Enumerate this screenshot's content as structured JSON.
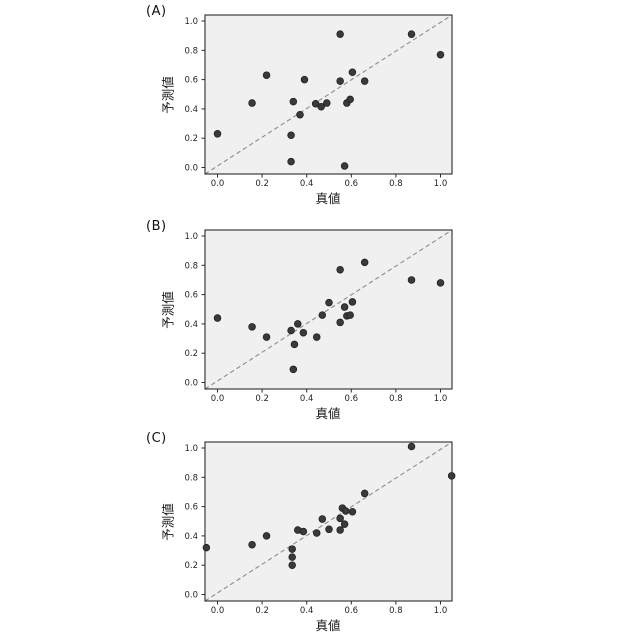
{
  "figure": {
    "background": "#ffffff",
    "description_labels": [
      "(A)",
      "(B)",
      "(C)"
    ]
  },
  "chart_data": [
    {
      "type": "scatter",
      "panel_label": "(A)",
      "xlabel": "真値",
      "ylabel": "予測値",
      "xlim": [
        -0.055,
        1.055
      ],
      "ylim": [
        -0.045,
        1.045
      ],
      "x_tick_values": [
        0.0,
        0.2,
        0.4,
        0.6,
        0.8,
        1.0
      ],
      "y_tick_values": [
        0.0,
        0.2,
        0.4,
        0.6,
        0.8,
        1.0
      ],
      "x_tick_labels": [
        "0.0",
        "0.2",
        "0.4",
        "0.6",
        "0.8",
        "1.0"
      ],
      "y_tick_labels": [
        "0.0",
        "0.2",
        "0.4",
        "0.6",
        "0.8",
        "1.0"
      ],
      "grid": false,
      "plot_bg": "#f0f0f0",
      "spine_color": "#2b2b2b",
      "identity_line": {
        "x": [
          0,
          1
        ],
        "y": [
          0,
          1
        ],
        "style": "dashed",
        "color": "#8c8c8c"
      },
      "marker": {
        "shape": "circle",
        "fill": "#3a3a3a",
        "edge": "#1c1c1c",
        "radius": 3.4
      },
      "points": [
        [
          0.0,
          0.23
        ],
        [
          0.155,
          0.44
        ],
        [
          0.22,
          0.63
        ],
        [
          0.33,
          0.22
        ],
        [
          0.33,
          0.04
        ],
        [
          0.34,
          0.45
        ],
        [
          0.37,
          0.36
        ],
        [
          0.39,
          0.6
        ],
        [
          0.44,
          0.435
        ],
        [
          0.465,
          0.415
        ],
        [
          0.49,
          0.44
        ],
        [
          0.55,
          0.91
        ],
        [
          0.55,
          0.59
        ],
        [
          0.57,
          0.01
        ],
        [
          0.58,
          0.44
        ],
        [
          0.595,
          0.465
        ],
        [
          0.605,
          0.65
        ],
        [
          0.66,
          0.59
        ],
        [
          0.87,
          0.91
        ],
        [
          1.0,
          0.77
        ]
      ]
    },
    {
      "type": "scatter",
      "panel_label": "(B)",
      "xlabel": "真値",
      "ylabel": "予測値",
      "xlim": [
        -0.055,
        1.055
      ],
      "ylim": [
        -0.045,
        1.045
      ],
      "x_tick_values": [
        0.0,
        0.2,
        0.4,
        0.6,
        0.8,
        1.0
      ],
      "y_tick_values": [
        0.0,
        0.2,
        0.4,
        0.6,
        0.8,
        1.0
      ],
      "x_tick_labels": [
        "0.0",
        "0.2",
        "0.4",
        "0.6",
        "0.8",
        "1.0"
      ],
      "y_tick_labels": [
        "0.0",
        "0.2",
        "0.4",
        "0.6",
        "0.8",
        "1.0"
      ],
      "grid": false,
      "plot_bg": "#f0f0f0",
      "spine_color": "#2b2b2b",
      "identity_line": {
        "x": [
          0,
          1
        ],
        "y": [
          0,
          1
        ],
        "style": "dashed",
        "color": "#8c8c8c"
      },
      "marker": {
        "shape": "circle",
        "fill": "#3a3a3a",
        "edge": "#1c1c1c",
        "radius": 3.4
      },
      "points": [
        [
          0.0,
          0.44
        ],
        [
          0.155,
          0.38
        ],
        [
          0.22,
          0.31
        ],
        [
          0.33,
          0.355
        ],
        [
          0.36,
          0.4
        ],
        [
          0.385,
          0.34
        ],
        [
          0.345,
          0.26
        ],
        [
          0.34,
          0.09
        ],
        [
          0.445,
          0.31
        ],
        [
          0.47,
          0.46
        ],
        [
          0.5,
          0.545
        ],
        [
          0.55,
          0.77
        ],
        [
          0.55,
          0.41
        ],
        [
          0.57,
          0.515
        ],
        [
          0.58,
          0.455
        ],
        [
          0.595,
          0.46
        ],
        [
          0.605,
          0.55
        ],
        [
          0.66,
          0.82
        ],
        [
          0.87,
          0.7
        ],
        [
          1.0,
          0.68
        ]
      ]
    },
    {
      "type": "scatter",
      "panel_label": "(C)",
      "xlabel": "真値",
      "ylabel": "予測値",
      "xlim": [
        -0.055,
        1.055
      ],
      "ylim": [
        -0.045,
        1.045
      ],
      "x_tick_values": [
        0.0,
        0.2,
        0.4,
        0.6,
        0.8,
        1.0
      ],
      "y_tick_values": [
        0.0,
        0.2,
        0.4,
        0.6,
        0.8,
        1.0
      ],
      "x_tick_labels": [
        "0.0",
        "0.2",
        "0.4",
        "0.6",
        "0.8",
        "1.0"
      ],
      "y_tick_labels": [
        "0.0",
        "0.2",
        "0.4",
        "0.6",
        "0.8",
        "1.0"
      ],
      "grid": false,
      "plot_bg": "#f0f0f0",
      "spine_color": "#2b2b2b",
      "identity_line": {
        "x": [
          0,
          1
        ],
        "y": [
          0,
          1
        ],
        "style": "dashed",
        "color": "#8c8c8c"
      },
      "marker": {
        "shape": "circle",
        "fill": "#3a3a3a",
        "edge": "#1c1c1c",
        "radius": 3.4
      },
      "points": [
        [
          -0.05,
          0.32
        ],
        [
          0.155,
          0.34
        ],
        [
          0.22,
          0.4
        ],
        [
          0.335,
          0.31
        ],
        [
          0.335,
          0.255
        ],
        [
          0.335,
          0.2
        ],
        [
          0.36,
          0.44
        ],
        [
          0.385,
          0.43
        ],
        [
          0.445,
          0.42
        ],
        [
          0.47,
          0.515
        ],
        [
          0.5,
          0.445
        ],
        [
          0.55,
          0.52
        ],
        [
          0.55,
          0.44
        ],
        [
          0.56,
          0.59
        ],
        [
          0.575,
          0.57
        ],
        [
          0.57,
          0.48
        ],
        [
          0.605,
          0.565
        ],
        [
          0.66,
          0.69
        ],
        [
          0.87,
          1.01
        ],
        [
          1.05,
          0.81
        ]
      ]
    }
  ]
}
